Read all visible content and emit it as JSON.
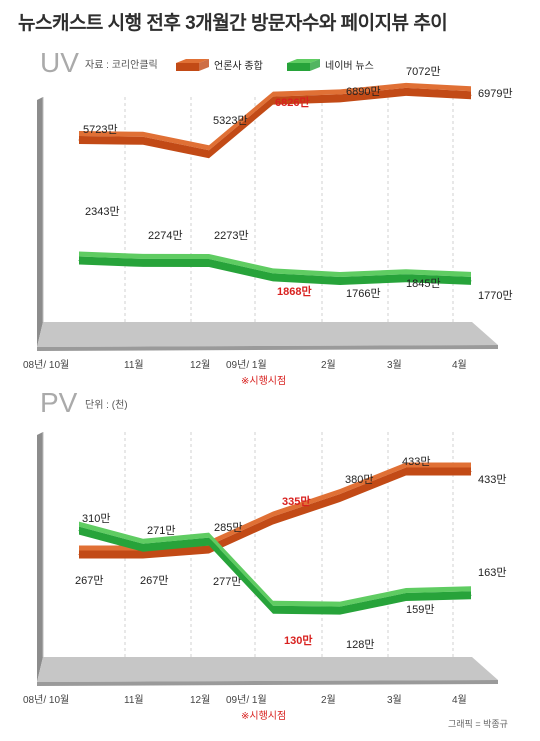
{
  "title": "뉴스캐스트 시행 전후 3개월간 방문자수와 페이지뷰 추이",
  "credit": "그래픽 = 박종규",
  "colors": {
    "orange": "#c24a16",
    "orange_light": "#e07035",
    "green": "#27a33a",
    "green_light": "#5fcc62",
    "highlight": "#d8211f",
    "floor": "#9a9a9a",
    "floor_light": "#c6c6c6"
  },
  "legend": [
    {
      "name": "언론사 종합",
      "color": "#c24a16"
    },
    {
      "name": "네이버 뉴스",
      "color": "#27a33a"
    }
  ],
  "chart_data": [
    {
      "type": "line",
      "title": "UV",
      "note": "자료 : 코리안클릭",
      "categories": [
        "08년/ 10월",
        "11월",
        "12월",
        "09년/ 1월",
        "2월",
        "3월",
        "4월"
      ],
      "event_label": "※시행시점",
      "series": [
        {
          "name": "언론사 종합",
          "values": [
            5723,
            5700,
            5323,
            6826,
            6890,
            7072,
            6979
          ],
          "labels": [
            "5723만",
            "",
            "5323만",
            "6826만",
            "6890만",
            "7072만",
            "6979만"
          ]
        },
        {
          "name": "네이버 뉴스",
          "values": [
            2343,
            2274,
            2273,
            1868,
            1766,
            1845,
            1770
          ],
          "labels": [
            "2343만",
            "2274만",
            "2273만",
            "1868만",
            "1766만",
            "1845만",
            "1770만"
          ]
        }
      ]
    },
    {
      "type": "line",
      "title": "PV",
      "note": "단위 : (천)",
      "categories": [
        "08년/ 10월",
        "11월",
        "12월",
        "09년/ 1월",
        "2월",
        "3월",
        "4월"
      ],
      "event_label": "※시행시점",
      "series": [
        {
          "name": "언론사 종합",
          "values": [
            267,
            267,
            277,
            335,
            380,
            433,
            433
          ],
          "labels": [
            "267만",
            "267만",
            "277만",
            "335만",
            "380만",
            "433만",
            "433만"
          ]
        },
        {
          "name": "네이버 뉴스",
          "values": [
            310,
            271,
            285,
            130,
            128,
            159,
            163
          ],
          "labels": [
            "310만",
            "271만",
            "285만",
            "130만",
            "128만",
            "159만",
            "163만"
          ]
        }
      ]
    }
  ]
}
